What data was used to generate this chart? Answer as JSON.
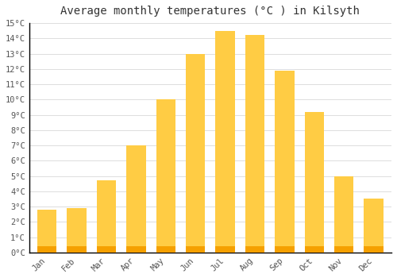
{
  "title": "Average monthly temperatures (°C ) in Kilsyth",
  "months": [
    "Jan",
    "Feb",
    "Mar",
    "Apr",
    "May",
    "Jun",
    "Jul",
    "Aug",
    "Sep",
    "Oct",
    "Nov",
    "Dec"
  ],
  "values": [
    2.8,
    2.9,
    4.7,
    7.0,
    10.0,
    13.0,
    14.5,
    14.2,
    11.9,
    9.2,
    5.0,
    3.5
  ],
  "bar_color_light": "#FFCC44",
  "bar_color_dark": "#F5A000",
  "ylim": [
    0,
    15
  ],
  "yticks": [
    0,
    1,
    2,
    3,
    4,
    5,
    6,
    7,
    8,
    9,
    10,
    11,
    12,
    13,
    14,
    15
  ],
  "background_color": "#ffffff",
  "grid_color": "#dddddd",
  "title_fontsize": 10,
  "tick_fontsize": 7.5,
  "title_font": "monospace",
  "tick_font": "monospace"
}
